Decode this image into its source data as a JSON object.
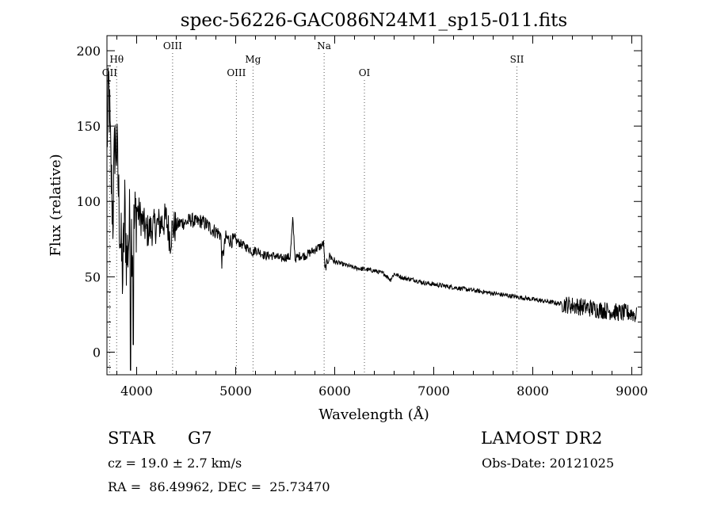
{
  "chart_data": {
    "type": "line",
    "title": "spec-56226-GAC086N24M1_sp15-011.fits",
    "xlabel": "Wavelength (Å)",
    "ylabel": "Flux (relative)",
    "xlim": [
      3700,
      9100
    ],
    "ylim": [
      -15,
      210
    ],
    "xticks": [
      4000,
      5000,
      6000,
      7000,
      8000,
      9000
    ],
    "yticks": [
      0,
      50,
      100,
      150,
      200
    ],
    "grid": false,
    "series": [
      {
        "name": "spectrum",
        "x": [
          3700,
          3720,
          3740,
          3760,
          3780,
          3800,
          3820,
          3840,
          3860,
          3880,
          3900,
          3930,
          3960,
          4000,
          4050,
          4100,
          4150,
          4200,
          4250,
          4300,
          4340,
          4360,
          4400,
          4450,
          4500,
          4550,
          4600,
          4650,
          4700,
          4750,
          4800,
          4850,
          4860,
          4900,
          4950,
          5000,
          5050,
          5100,
          5150,
          5175,
          5200,
          5250,
          5300,
          5350,
          5400,
          5450,
          5500,
          5550,
          5577,
          5600,
          5650,
          5700,
          5750,
          5800,
          5850,
          5890,
          5900,
          5950,
          6000,
          6100,
          6200,
          6300,
          6400,
          6500,
          6563,
          6600,
          6700,
          6800,
          6900,
          7000,
          7100,
          7200,
          7300,
          7400,
          7500,
          7600,
          7700,
          7800,
          7900,
          8000,
          8100,
          8200,
          8300,
          8400,
          8500,
          8600,
          8700,
          8800,
          8900,
          9000,
          9050
        ],
        "y": [
          140,
          175,
          120,
          90,
          140,
          135,
          100,
          70,
          50,
          95,
          60,
          85,
          75,
          95,
          88,
          80,
          82,
          84,
          86,
          88,
          75,
          82,
          84,
          86,
          86,
          88,
          86,
          87,
          85,
          82,
          80,
          78,
          60,
          76,
          74,
          74,
          72,
          70,
          68,
          66,
          68,
          66,
          64,
          64,
          64,
          62,
          63,
          63,
          88,
          62,
          64,
          64,
          66,
          68,
          70,
          72,
          55,
          64,
          60,
          58,
          56,
          55,
          54,
          52,
          48,
          52,
          49,
          48,
          46,
          45,
          44,
          43,
          42,
          41,
          40,
          39,
          38,
          37,
          36,
          35,
          34,
          33,
          32,
          31,
          30,
          29,
          28,
          27,
          26,
          26,
          24
        ]
      }
    ],
    "lines": [
      {
        "label": "OII",
        "x": 3727,
        "level": 3
      },
      {
        "label": "Hθ",
        "x": 3798,
        "level": 2
      },
      {
        "label": "OIII",
        "x": 4363,
        "level": 1
      },
      {
        "label": "OIII",
        "x": 5007,
        "level": 3
      },
      {
        "label": "Mg",
        "x": 5175,
        "level": 2
      },
      {
        "label": "Na",
        "x": 5893,
        "level": 1
      },
      {
        "label": "OI",
        "x": 6300,
        "level": 3
      },
      {
        "label": "SII",
        "x": 7840,
        "level": 2
      }
    ]
  },
  "info": {
    "object_class": "STAR",
    "subclass": "G7",
    "survey": "LAMOST DR2",
    "cz": "cz = 19.0 ± 2.7 km/s",
    "obs_date": "Obs-Date: 20121025",
    "coords": "RA =  86.49962, DEC =  25.73470"
  }
}
